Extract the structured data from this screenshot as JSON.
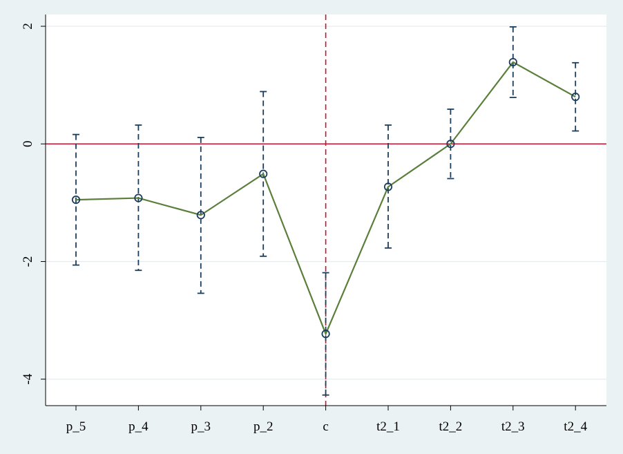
{
  "chart_data": {
    "type": "line",
    "title": "",
    "xlabel": "",
    "ylabel": "",
    "categories": [
      "p_5",
      "p_4",
      "p_3",
      "p_2",
      "c",
      "t2_1",
      "t2_2",
      "t2_3",
      "t2_4"
    ],
    "series": [
      {
        "values": [
          -0.95,
          -0.92,
          -1.21,
          -0.51,
          -3.23,
          -0.73,
          0.0,
          1.39,
          0.8
        ],
        "ci_low": [
          -2.06,
          -2.15,
          -2.54,
          -1.91,
          -4.27,
          -1.77,
          -0.59,
          0.79,
          0.22
        ],
        "ci_high": [
          0.16,
          0.32,
          0.11,
          0.89,
          -2.19,
          0.32,
          0.59,
          1.99,
          1.38
        ]
      }
    ],
    "ylim": [
      -4.45,
      2.2
    ],
    "yticks": [
      "-4",
      "-2",
      "0",
      "2"
    ],
    "ytick_values": [
      -4,
      -2,
      0,
      2
    ],
    "reference_lines": [
      {
        "axis": "y",
        "value": 0,
        "color": "#c8102e",
        "style": "solid"
      },
      {
        "axis": "x",
        "category": "c",
        "color": "#c8102e",
        "style": "dashed"
      }
    ],
    "colors": {
      "line": "#5a7f3a",
      "marker": "#1b3d5c",
      "ci": "#1b3d5c",
      "reference": "#c8102e",
      "grid": "#e5ecee",
      "plot_background": "#ffffff",
      "outer_background": "#eaf2f3"
    },
    "grid": true,
    "legend": "none"
  }
}
